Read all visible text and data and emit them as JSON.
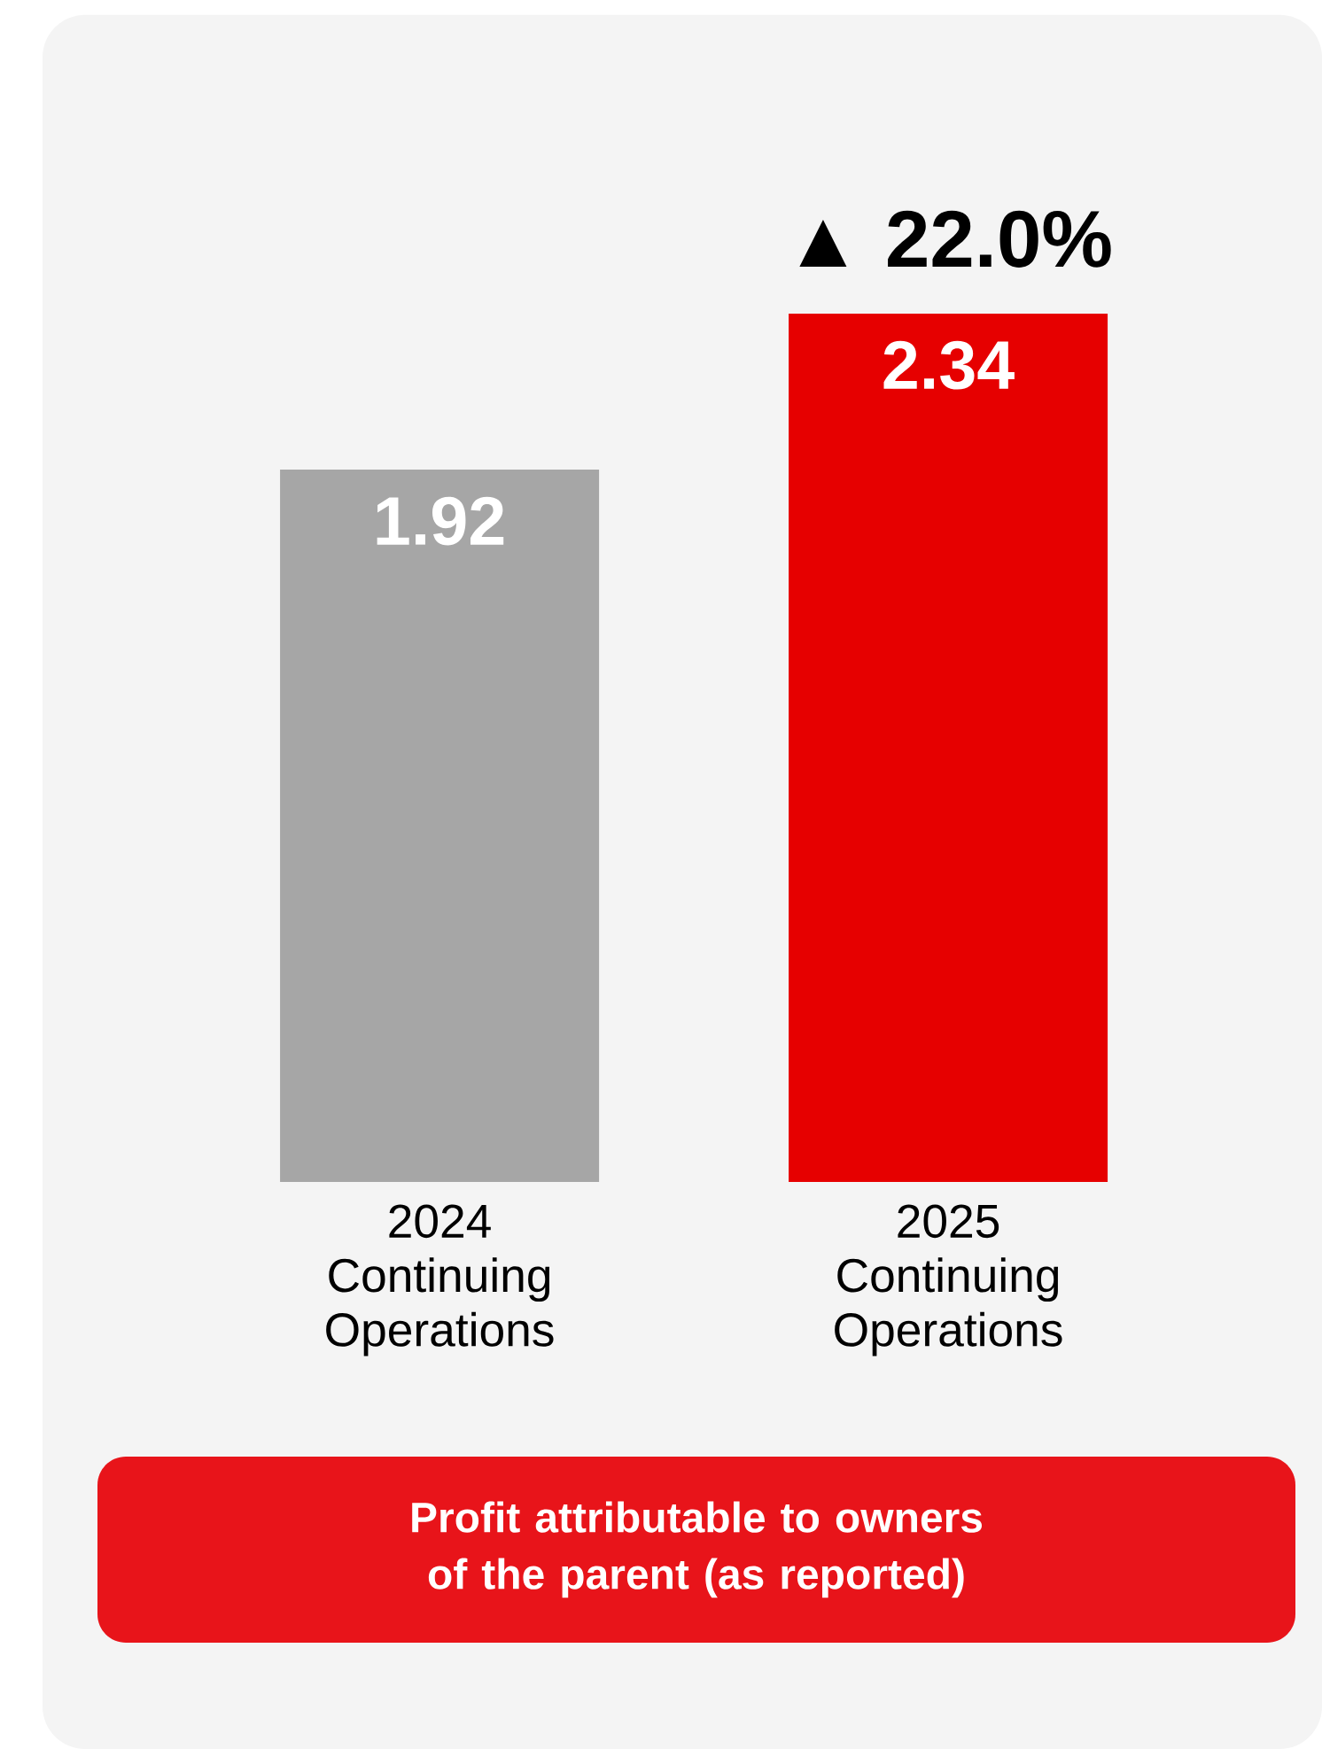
{
  "chart_data": {
    "type": "bar",
    "title": "Profit attributable to owners of the parent (as reported)",
    "categories": [
      "2024 Continuing Operations",
      "2025 Continuing Operations"
    ],
    "values": [
      1.92,
      2.34
    ],
    "colors": [
      "#a6a6a6",
      "#e60000"
    ],
    "data_labels": true,
    "annotations": [
      "▲ 22.0%"
    ]
  }
}
